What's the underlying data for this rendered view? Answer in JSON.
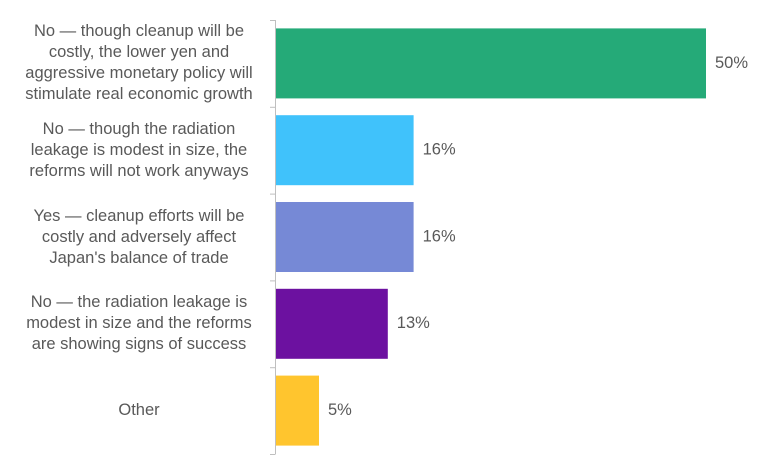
{
  "chart_data": {
    "type": "bar",
    "orientation": "horizontal",
    "categories": [
      "No — though cleanup will be costly, the lower yen and aggressive monetary policy will stimulate real economic growth",
      "No — though the radiation leakage is modest in size, the reforms will not work anyways",
      "Yes — cleanup efforts will be costly and adversely affect Japan's balance of trade",
      "No — the radiation leakage is modest in size and the reforms are showing signs of success",
      "Other"
    ],
    "category_lines": [
      [
        "No — though cleanup will be",
        "costly, the lower yen and",
        "aggressive monetary policy will",
        "stimulate real economic growth"
      ],
      [
        "No — though the radiation",
        "leakage is modest in size, the",
        "reforms will not work anyways"
      ],
      [
        "Yes — cleanup efforts will be",
        "costly and adversely affect",
        "Japan's balance of trade"
      ],
      [
        "No — the radiation leakage is",
        "modest in size and the reforms",
        "are showing signs of success"
      ],
      [
        "Other"
      ]
    ],
    "values": [
      50,
      16,
      16,
      13,
      5
    ],
    "value_labels": [
      "50%",
      "16%",
      "16%",
      "13%",
      "5%"
    ],
    "colors": [
      "#25AA78",
      "#40C2FB",
      "#7689D6",
      "#6C11A0",
      "#FFC52E"
    ],
    "xlim": [
      0,
      55
    ],
    "title": "",
    "xlabel": "",
    "ylabel": "",
    "grid": false,
    "legend": "none"
  }
}
